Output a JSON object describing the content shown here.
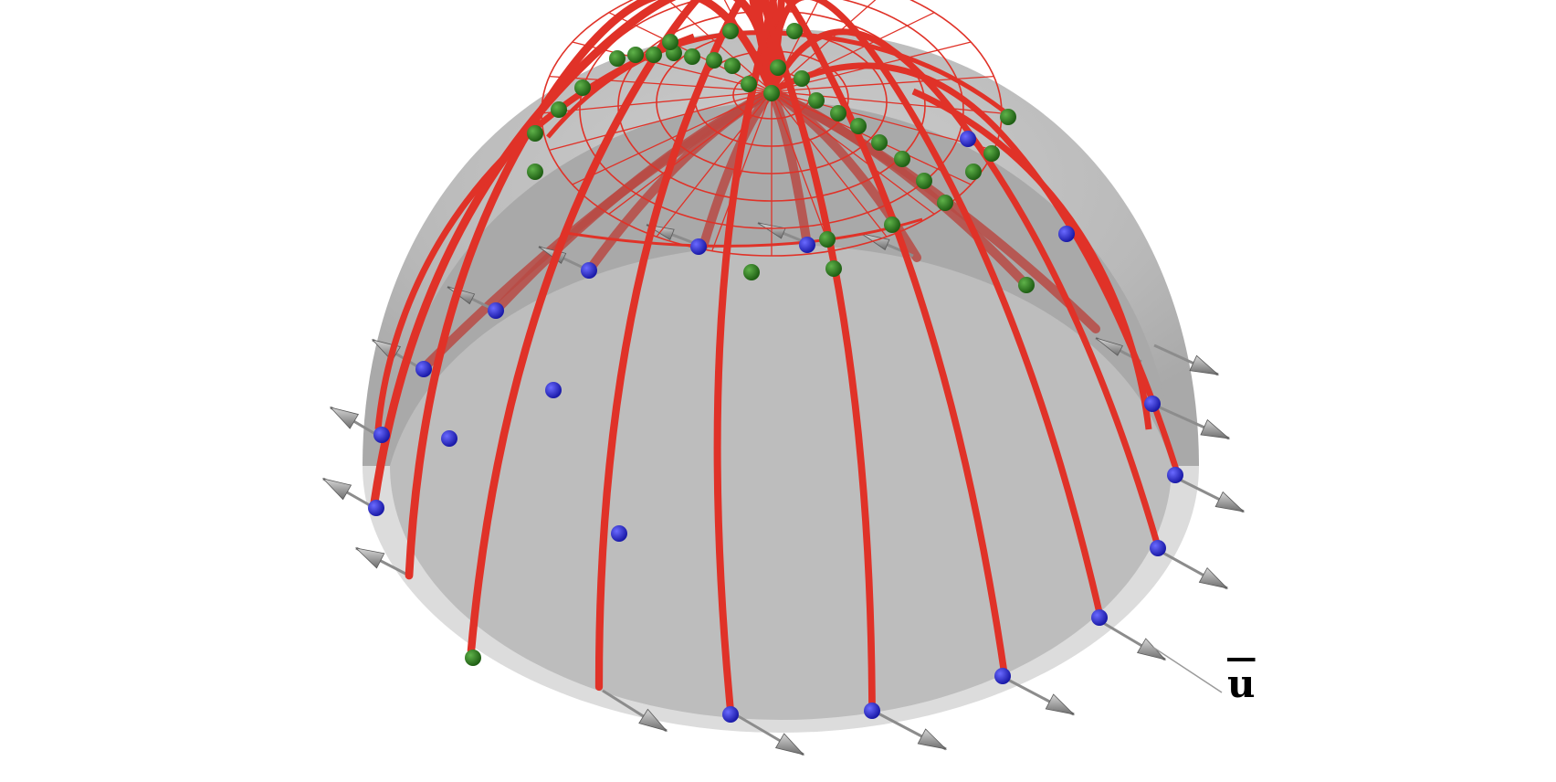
{
  "label": "u",
  "colors": {
    "background": "#ffffff",
    "dome_light": "#d8d8d8",
    "dome_mid": "#c0c0c0",
    "dome_dark": "#a6a6a6",
    "rib": "#e03228",
    "rib_back": "#b84a44",
    "node_green": "#2e7d1f",
    "node_blue": "#2a2ad0",
    "arrow": "#8c8c8c"
  },
  "icons": {
    "support_node": "blue-sphere",
    "free_node": "green-sphere",
    "load_vector": "cone-arrow"
  }
}
